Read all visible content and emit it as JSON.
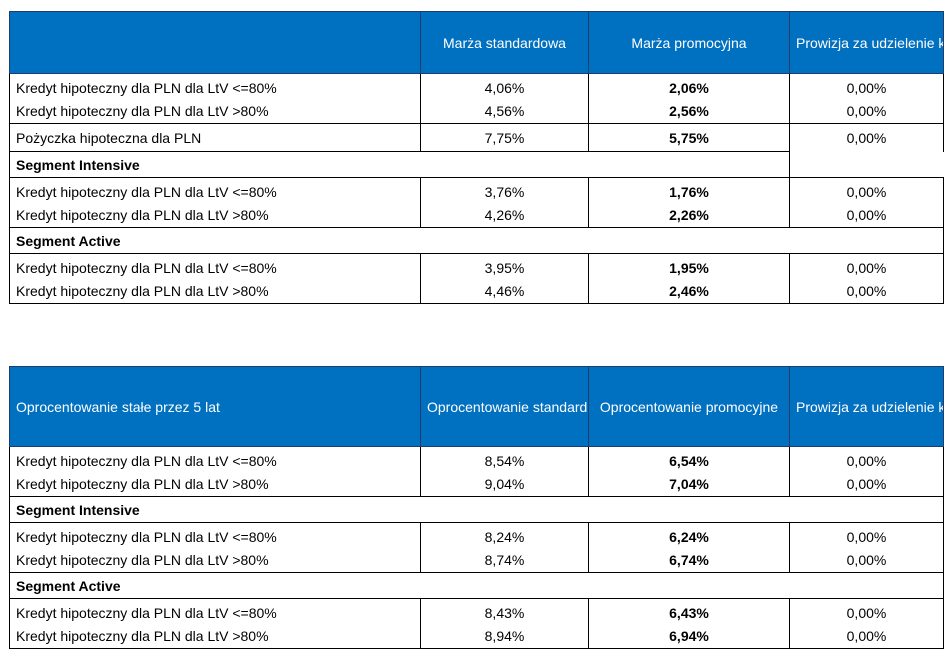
{
  "table1": {
    "header": {
      "col1": "",
      "col2": "Marża standardowa",
      "col3": "Marża promocyjna",
      "col4": "Prowizja za udzielenie kredytu"
    },
    "group_a": [
      {
        "label": "Kredyt hipoteczny dla PLN dla LtV <=80%",
        "standard": "4,06%",
        "promo": "2,06%",
        "fee": "0,00%"
      },
      {
        "label": "Kredyt hipoteczny dla PLN dla LtV >80%",
        "standard": "4,56%",
        "promo": "2,56%",
        "fee": "0,00%"
      }
    ],
    "loan": {
      "label": "Pożyczka hipoteczna dla PLN",
      "standard": "7,75%",
      "promo": "5,75%",
      "fee": "0,00%"
    },
    "segment_intensive": {
      "title": "Segment Intensive",
      "rows": [
        {
          "label": "Kredyt hipoteczny dla PLN dla LtV <=80%",
          "standard": "3,76%",
          "promo": "1,76%",
          "fee": "0,00%"
        },
        {
          "label": "Kredyt hipoteczny dla PLN dla LtV >80%",
          "standard": "4,26%",
          "promo": "2,26%",
          "fee": "0,00%"
        }
      ]
    },
    "segment_active": {
      "title": "Segment Active",
      "rows": [
        {
          "label": "Kredyt hipoteczny dla PLN dla LtV <=80%",
          "standard": "3,95%",
          "promo": "1,95%",
          "fee": "0,00%"
        },
        {
          "label": "Kredyt hipoteczny dla PLN dla LtV >80%",
          "standard": "4,46%",
          "promo": "2,46%",
          "fee": "0,00%"
        }
      ]
    }
  },
  "table2": {
    "header": {
      "col1": "Oprocentowanie stałe przez 5 lat",
      "col2": "Oprocentowanie standardowe",
      "col3": "Oprocentowanie promocyjne",
      "col4": "Prowizja za udzielenie kredytu"
    },
    "group_a": [
      {
        "label": "Kredyt hipoteczny dla PLN dla LtV <=80%",
        "standard": "8,54%",
        "promo": "6,54%",
        "fee": "0,00%"
      },
      {
        "label": "Kredyt hipoteczny dla PLN dla LtV >80%",
        "standard": "9,04%",
        "promo": "7,04%",
        "fee": "0,00%"
      }
    ],
    "segment_intensive": {
      "title": "Segment Intensive",
      "rows": [
        {
          "label": "Kredyt hipoteczny dla PLN dla LtV <=80%",
          "standard": "8,24%",
          "promo": "6,24%",
          "fee": "0,00%"
        },
        {
          "label": "Kredyt hipoteczny dla PLN dla LtV >80%",
          "standard": "8,74%",
          "promo": "6,74%",
          "fee": "0,00%"
        }
      ]
    },
    "segment_active": {
      "title": "Segment Active",
      "rows": [
        {
          "label": "Kredyt hipoteczny dla PLN dla LtV <=80%",
          "standard": "8,43%",
          "promo": "6,43%",
          "fee": "0,00%"
        },
        {
          "label": "Kredyt hipoteczny dla PLN dla LtV >80%",
          "standard": "8,94%",
          "promo": "6,94%",
          "fee": "0,00%"
        }
      ]
    }
  },
  "colors": {
    "header_bg": "#0070c0",
    "header_text": "#ffffff",
    "border": "#000000"
  }
}
